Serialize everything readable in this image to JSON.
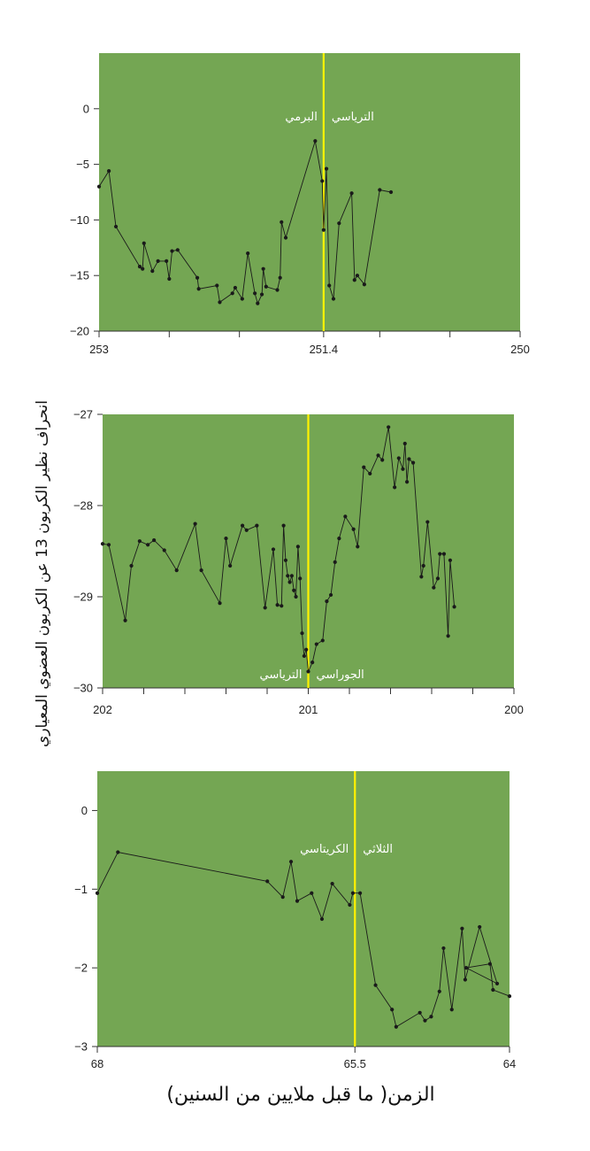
{
  "colors": {
    "panel_bg": "#74a653",
    "boundary": "#fff200",
    "series": "#1a1a1a"
  },
  "y_axis_title": "انحراف نظير الكربون 13 عن الكربون العضوي المعياري",
  "x_axis_title": "الزمن( ما قبل ملايين من السنين)",
  "chart_data": [
    {
      "type": "line",
      "x_reversed": true,
      "xlim": [
        253,
        250
      ],
      "ylim": [
        -20,
        5
      ],
      "x_ticks": [
        253,
        252.5,
        252,
        251.4,
        251,
        250.5,
        250
      ],
      "x_tick_labels": [
        "253",
        "251.4",
        "250"
      ],
      "x_tick_label_values": [
        253,
        251.4,
        250
      ],
      "y_ticks": [
        0,
        -5,
        -10,
        -15,
        -20
      ],
      "y_tick_labels": [
        "0",
        "−5",
        "−10",
        "−15",
        "−20"
      ],
      "boundary_x": 251.4,
      "left_label": "البرمي",
      "right_label": "الترياسي",
      "points": [
        [
          253.0,
          -7.0
        ],
        [
          252.93,
          -5.6
        ],
        [
          252.88,
          -10.6
        ],
        [
          252.71,
          -14.2
        ],
        [
          252.69,
          -14.4
        ],
        [
          252.68,
          -12.1
        ],
        [
          252.62,
          -14.6
        ],
        [
          252.58,
          -13.7
        ],
        [
          252.52,
          -13.7
        ],
        [
          252.5,
          -15.3
        ],
        [
          252.48,
          -12.8
        ],
        [
          252.44,
          -12.7
        ],
        [
          252.3,
          -15.2
        ],
        [
          252.29,
          -16.2
        ],
        [
          252.16,
          -15.9
        ],
        [
          252.14,
          -17.4
        ],
        [
          252.05,
          -16.6
        ],
        [
          252.03,
          -16.1
        ],
        [
          251.98,
          -17.1
        ],
        [
          251.94,
          -13.0
        ],
        [
          251.89,
          -16.6
        ],
        [
          251.87,
          -17.5
        ],
        [
          251.84,
          -16.7
        ],
        [
          251.83,
          -14.4
        ],
        [
          251.81,
          -16.0
        ],
        [
          251.73,
          -16.3
        ],
        [
          251.71,
          -15.2
        ],
        [
          251.7,
          -10.2
        ],
        [
          251.67,
          -11.6
        ],
        [
          251.46,
          -2.9
        ],
        [
          251.41,
          -6.5
        ],
        [
          251.4,
          -10.9
        ],
        [
          251.38,
          -5.4
        ],
        [
          251.36,
          -15.9
        ],
        [
          251.33,
          -17.1
        ],
        [
          251.29,
          -10.3
        ],
        [
          251.2,
          -7.6
        ],
        [
          251.18,
          -15.4
        ],
        [
          251.16,
          -15.0
        ],
        [
          251.11,
          -15.8
        ],
        [
          251.0,
          -7.3
        ],
        [
          250.92,
          -7.5
        ]
      ]
    },
    {
      "type": "line",
      "x_reversed": true,
      "xlim": [
        202,
        200
      ],
      "ylim": [
        -30,
        -27
      ],
      "x_ticks": [
        202,
        201.8,
        201.6,
        201.4,
        201.2,
        201,
        200.8,
        200.6,
        200.4,
        200.2,
        200
      ],
      "x_tick_labels": [
        "202",
        "201",
        "200"
      ],
      "x_tick_label_values": [
        202,
        201,
        200
      ],
      "y_ticks": [
        -27,
        -28,
        -29,
        -30
      ],
      "y_tick_labels": [
        "−27",
        "−28",
        "−29",
        "−30"
      ],
      "boundary_x": 201,
      "left_label": "الترياسي",
      "right_label": "الجوراسي",
      "points": [
        [
          202.0,
          -28.42
        ],
        [
          201.97,
          -28.43
        ],
        [
          201.89,
          -29.26
        ],
        [
          201.86,
          -28.66
        ],
        [
          201.82,
          -28.39
        ],
        [
          201.78,
          -28.43
        ],
        [
          201.75,
          -28.38
        ],
        [
          201.7,
          -28.49
        ],
        [
          201.64,
          -28.71
        ],
        [
          201.55,
          -28.2
        ],
        [
          201.52,
          -28.71
        ],
        [
          201.43,
          -29.07
        ],
        [
          201.4,
          -28.36
        ],
        [
          201.38,
          -28.66
        ],
        [
          201.32,
          -28.22
        ],
        [
          201.3,
          -28.27
        ],
        [
          201.25,
          -28.22
        ],
        [
          201.21,
          -29.12
        ],
        [
          201.17,
          -28.48
        ],
        [
          201.15,
          -29.09
        ],
        [
          201.13,
          -29.1
        ],
        [
          201.12,
          -28.22
        ],
        [
          201.11,
          -28.6
        ],
        [
          201.1,
          -28.77
        ],
        [
          201.09,
          -28.84
        ],
        [
          201.08,
          -28.77
        ],
        [
          201.07,
          -28.93
        ],
        [
          201.06,
          -29.0
        ],
        [
          201.05,
          -28.45
        ],
        [
          201.04,
          -28.8
        ],
        [
          201.03,
          -29.4
        ],
        [
          201.02,
          -29.65
        ],
        [
          201.01,
          -29.58
        ],
        [
          201.0,
          -29.82
        ],
        [
          200.98,
          -29.72
        ],
        [
          200.96,
          -29.52
        ],
        [
          200.93,
          -29.48
        ],
        [
          200.91,
          -29.05
        ],
        [
          200.89,
          -28.98
        ],
        [
          200.87,
          -28.62
        ],
        [
          200.85,
          -28.36
        ],
        [
          200.82,
          -28.12
        ],
        [
          200.78,
          -28.26
        ],
        [
          200.76,
          -28.45
        ],
        [
          200.73,
          -27.58
        ],
        [
          200.7,
          -27.65
        ],
        [
          200.66,
          -27.45
        ],
        [
          200.64,
          -27.5
        ],
        [
          200.61,
          -27.14
        ],
        [
          200.58,
          -27.8
        ],
        [
          200.56,
          -27.48
        ],
        [
          200.54,
          -27.6
        ],
        [
          200.53,
          -27.32
        ],
        [
          200.52,
          -27.74
        ],
        [
          200.51,
          -27.49
        ],
        [
          200.49,
          -27.53
        ],
        [
          200.45,
          -28.78
        ],
        [
          200.44,
          -28.66
        ],
        [
          200.42,
          -28.18
        ],
        [
          200.39,
          -28.9
        ],
        [
          200.37,
          -28.8
        ],
        [
          200.36,
          -28.53
        ],
        [
          200.34,
          -28.53
        ],
        [
          200.32,
          -29.43
        ],
        [
          200.31,
          -28.6
        ],
        [
          200.29,
          -29.11
        ]
      ]
    },
    {
      "type": "line",
      "x_reversed": true,
      "xlim": [
        68,
        64
      ],
      "ylim": [
        -3,
        0.5
      ],
      "x_ticks": [
        68,
        65.5,
        64
      ],
      "x_tick_labels": [
        "68",
        "65.5",
        "64"
      ],
      "x_tick_label_values": [
        68,
        65.5,
        64
      ],
      "y_ticks": [
        0,
        -1,
        -2,
        -3
      ],
      "y_tick_labels": [
        "0",
        "−1",
        "−2",
        "−3"
      ],
      "boundary_x": 65.5,
      "left_label": "الكريتاسي",
      "right_label": "الثلاثي",
      "points": [
        [
          68.0,
          -1.05
        ],
        [
          67.8,
          -0.53
        ],
        [
          66.35,
          -0.9
        ],
        [
          66.2,
          -1.1
        ],
        [
          66.12,
          -0.65
        ],
        [
          66.06,
          -1.15
        ],
        [
          65.92,
          -1.05
        ],
        [
          65.82,
          -1.38
        ],
        [
          65.72,
          -0.93
        ],
        [
          65.55,
          -1.2
        ],
        [
          65.52,
          -1.05
        ],
        [
          65.45,
          -1.05
        ],
        [
          65.3,
          -2.22
        ],
        [
          65.14,
          -2.53
        ],
        [
          65.1,
          -2.75
        ],
        [
          64.87,
          -2.57
        ],
        [
          64.82,
          -2.67
        ],
        [
          64.76,
          -2.62
        ],
        [
          64.68,
          -2.3
        ],
        [
          64.64,
          -1.75
        ],
        [
          64.56,
          -2.53
        ],
        [
          64.46,
          -1.5
        ],
        [
          64.43,
          -2.15
        ],
        [
          64.29,
          -1.48
        ],
        [
          64.12,
          -2.2
        ],
        [
          64.42,
          -2.0
        ],
        [
          64.19,
          -1.95
        ],
        [
          64.16,
          -2.28
        ],
        [
          64.0,
          -2.36
        ]
      ]
    }
  ]
}
